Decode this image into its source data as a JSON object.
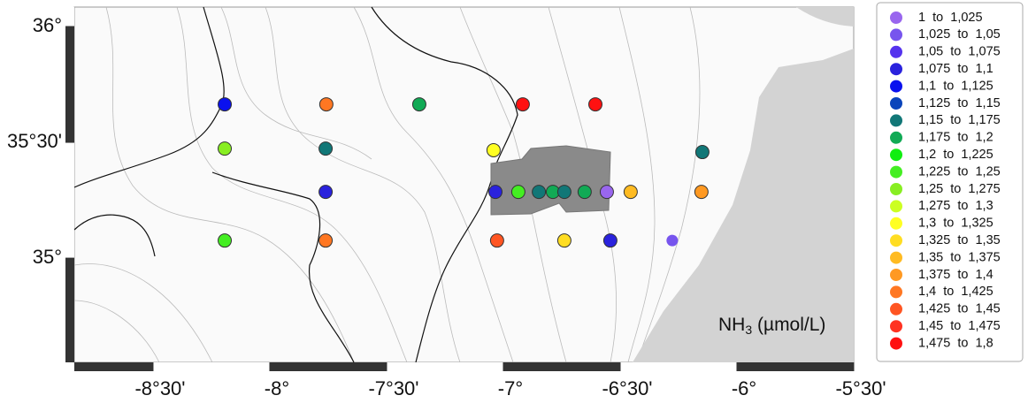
{
  "map": {
    "xlim": [
      -8.837,
      -5.5
    ],
    "ylim": [
      34.55,
      36.084
    ],
    "xticks": [
      {
        "value": -8.5,
        "label": "-8°30'"
      },
      {
        "value": -8,
        "label": "-8°"
      },
      {
        "value": -7.5,
        "label": "-7°30'"
      },
      {
        "value": -7,
        "label": "-7°"
      },
      {
        "value": -6.5,
        "label": "-6°30'"
      },
      {
        "value": -6,
        "label": "-6°"
      },
      {
        "value": -5.5,
        "label": "-5°30'"
      }
    ],
    "yticks": [
      {
        "value": 36,
        "label": "36°"
      },
      {
        "value": 35.5,
        "label": "35°30'"
      },
      {
        "value": 35,
        "label": "35°"
      }
    ],
    "variable": {
      "name": "NH",
      "subscript": "3",
      "unit": " (µmol/L)"
    },
    "legend": [
      {
        "label": "1  to  1,025",
        "color": "#9966ee"
      },
      {
        "label": "1,025  to  1,05",
        "color": "#7755ee"
      },
      {
        "label": "1,05  to  1,075",
        "color": "#5533ee"
      },
      {
        "label": "1,075  to  1,1",
        "color": "#2a22dd"
      },
      {
        "label": "1,1  to  1,125",
        "color": "#0a11ee"
      },
      {
        "label": "1,125  to  1,15",
        "color": "#0a44bb"
      },
      {
        "label": "1,15  to  1,175",
        "color": "#117777"
      },
      {
        "label": "1,175  to  1,2",
        "color": "#11aa55"
      },
      {
        "label": "1,2  to  1,225",
        "color": "#11ee11"
      },
      {
        "label": "1,225  to  1,25",
        "color": "#44ee22"
      },
      {
        "label": "1,25  to  1,275",
        "color": "#88ee22"
      },
      {
        "label": "1,275  to  1,3",
        "color": "#ccff22"
      },
      {
        "label": "1,3  to  1,325",
        "color": "#ffff22"
      },
      {
        "label": "1,325  to  1,35",
        "color": "#ffdd22"
      },
      {
        "label": "1,35  to  1,375",
        "color": "#ffbb22"
      },
      {
        "label": "1,375  to  1,4",
        "color": "#ff9922"
      },
      {
        "label": "1,4  to  1,425",
        "color": "#ff7722"
      },
      {
        "label": "1,425  to  1,45",
        "color": "#ff5522"
      },
      {
        "label": "1,45  to  1,475",
        "color": "#ff3322"
      },
      {
        "label": "1,475  to  1,8",
        "color": "#ff1111"
      }
    ],
    "stations": [
      {
        "lon": -8.193,
        "lat": 35.664,
        "bin": 4
      },
      {
        "lon": -7.758,
        "lat": 35.664,
        "bin": 16
      },
      {
        "lon": -7.36,
        "lat": 35.664,
        "bin": 7
      },
      {
        "lon": -6.917,
        "lat": 35.664,
        "bin": 19
      },
      {
        "lon": -6.606,
        "lat": 35.664,
        "bin": 19
      },
      {
        "lon": -8.193,
        "lat": 35.473,
        "bin": 10
      },
      {
        "lon": -7.761,
        "lat": 35.473,
        "bin": 6
      },
      {
        "lon": -7.042,
        "lat": 35.466,
        "bin": 12
      },
      {
        "lon": -6.148,
        "lat": 35.458,
        "bin": 6
      },
      {
        "lon": -7.761,
        "lat": 35.286,
        "bin": 3
      },
      {
        "lon": -7.034,
        "lat": 35.286,
        "bin": 3
      },
      {
        "lon": -6.936,
        "lat": 35.286,
        "bin": 9
      },
      {
        "lon": -6.848,
        "lat": 35.286,
        "bin": 6
      },
      {
        "lon": -6.788,
        "lat": 35.286,
        "bin": 7
      },
      {
        "lon": -6.739,
        "lat": 35.286,
        "bin": 6
      },
      {
        "lon": -6.652,
        "lat": 35.286,
        "bin": 7
      },
      {
        "lon": -6.557,
        "lat": 35.286,
        "bin": 0
      },
      {
        "lon": -6.455,
        "lat": 35.286,
        "bin": 14
      },
      {
        "lon": -6.152,
        "lat": 35.286,
        "bin": 15
      },
      {
        "lon": -8.193,
        "lat": 35.076,
        "bin": 9
      },
      {
        "lon": -7.761,
        "lat": 35.076,
        "bin": 16
      },
      {
        "lon": -7.027,
        "lat": 35.076,
        "bin": 17
      },
      {
        "lon": -6.739,
        "lat": 35.076,
        "bin": 13
      },
      {
        "lon": -6.542,
        "lat": 35.076,
        "bin": 3
      },
      {
        "lon": -6.277,
        "lat": 35.076,
        "bin": 1
      }
    ]
  }
}
